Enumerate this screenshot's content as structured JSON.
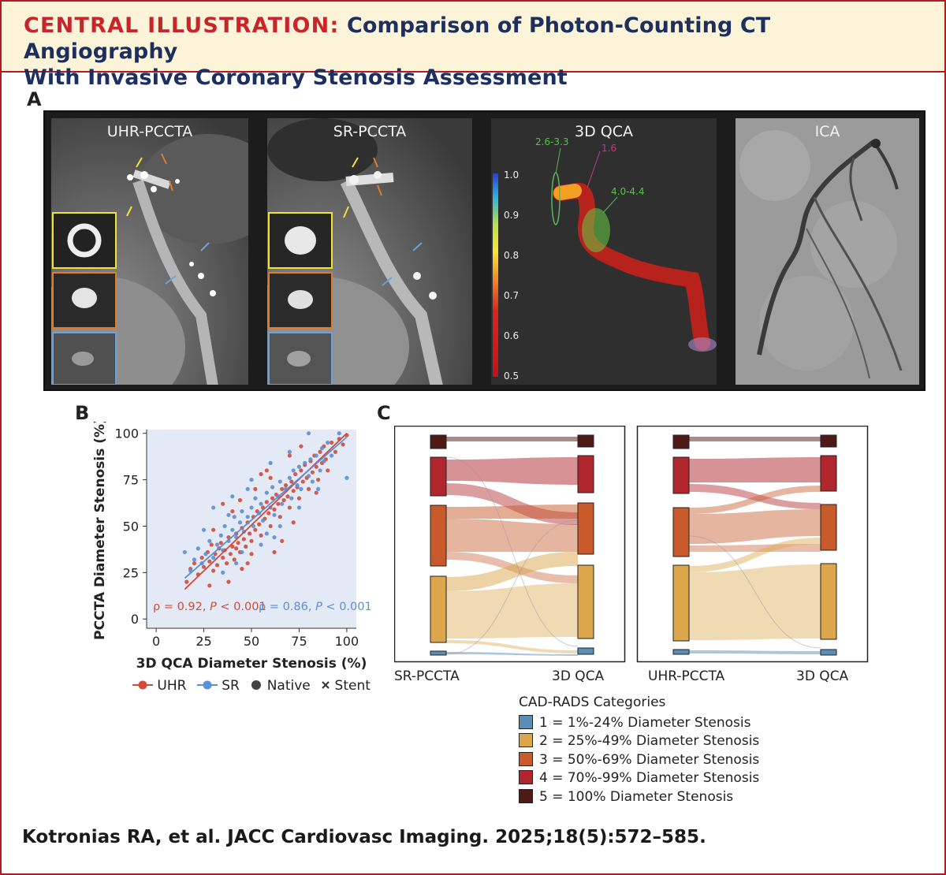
{
  "header": {
    "lead": "CENTRAL ILLUSTRATION:",
    "title_line1": "Comparison of Photon-Counting CT Angiography",
    "title_line2": "With Invasive Coronary Stenosis Assessment"
  },
  "panel_a": {
    "label": "A",
    "images": [
      {
        "label": "UHR-PCCTA"
      },
      {
        "label": "SR-PCCTA"
      },
      {
        "label": "3D QCA"
      },
      {
        "label": "ICA"
      }
    ],
    "qca_annotations": [
      "2.6-3.3",
      "1.6",
      "4.0-4.4"
    ],
    "colorbar_ticks": [
      "1.0",
      "0.9",
      "0.8",
      "0.7",
      "0.6",
      "0.5"
    ]
  },
  "panel_b": {
    "label": "B",
    "xlabel": "3D QCA Diameter Stenosis (%)",
    "ylabel": "PCCTA Diameter Stenosis (%)",
    "stat_uhr": "ρ = 0.92, P < 0.001",
    "stat_uhr_parts": {
      "a": "ρ = 0.92, ",
      "p": "P",
      "b": " < 0.001"
    },
    "stat_sr_parts": {
      "a": "ρ = 0.86, ",
      "p": "P",
      "b": " < 0.001"
    },
    "legend": {
      "uhr": "UHR",
      "sr": "SR",
      "native": "Native",
      "stent": "Stent"
    },
    "colors": {
      "uhr": "#cf4b3b",
      "sr": "#5b8fd6",
      "native": "#444444",
      "background": "#e4e9f6"
    }
  },
  "panel_c": {
    "label": "C",
    "left_axis_labels": [
      "SR-PCCTA",
      "3D QCA"
    ],
    "right_axis_labels": [
      "UHR-PCCTA",
      "3D QCA"
    ],
    "legend_title": "CAD-RADS Categories",
    "categories": [
      {
        "label": "1 = 1%-24% Diameter Stenosis",
        "color": "#5b8db8"
      },
      {
        "label": "2 = 25%-49% Diameter Stenosis",
        "color": "#dba64c"
      },
      {
        "label": "3 = 50%-69% Diameter Stenosis",
        "color": "#c85a2c"
      },
      {
        "label": "4 = 70%-99% Diameter Stenosis",
        "color": "#b0262c"
      },
      {
        "label": "5 = 100% Diameter Stenosis",
        "color": "#4f1a16"
      }
    ]
  },
  "chart_data": {
    "type": "scatter",
    "xlabel": "3D QCA Diameter Stenosis (%)",
    "ylabel": "PCCTA Diameter Stenosis (%)",
    "xlim": [
      -5,
      105
    ],
    "ylim": [
      -5,
      102
    ],
    "xticks": [
      0,
      25,
      50,
      75,
      100
    ],
    "yticks": [
      0,
      25,
      50,
      75,
      100
    ],
    "grid": false,
    "legend_position": "bottom",
    "series": [
      {
        "name": "UHR",
        "color": "#cf4b3b",
        "fit": [
          [
            15,
            16
          ],
          [
            100,
            100
          ]
        ],
        "points": [
          [
            16,
            20
          ],
          [
            18,
            27
          ],
          [
            20,
            30
          ],
          [
            22,
            24
          ],
          [
            24,
            33
          ],
          [
            25,
            28
          ],
          [
            27,
            36
          ],
          [
            28,
            31
          ],
          [
            29,
            40
          ],
          [
            30,
            26
          ],
          [
            31,
            35
          ],
          [
            32,
            29
          ],
          [
            33,
            38
          ],
          [
            34,
            41
          ],
          [
            35,
            33
          ],
          [
            36,
            37
          ],
          [
            37,
            30
          ],
          [
            38,
            44
          ],
          [
            39,
            35
          ],
          [
            40,
            39
          ],
          [
            41,
            32
          ],
          [
            42,
            46
          ],
          [
            42,
            38
          ],
          [
            43,
            41
          ],
          [
            44,
            36
          ],
          [
            45,
            49
          ],
          [
            46,
            43
          ],
          [
            47,
            39
          ],
          [
            48,
            52
          ],
          [
            49,
            46
          ],
          [
            50,
            42
          ],
          [
            51,
            55
          ],
          [
            52,
            48
          ],
          [
            53,
            58
          ],
          [
            54,
            51
          ],
          [
            55,
            45
          ],
          [
            56,
            60
          ],
          [
            57,
            54
          ],
          [
            58,
            63
          ],
          [
            59,
            57
          ],
          [
            60,
            50
          ],
          [
            61,
            65
          ],
          [
            62,
            59
          ],
          [
            63,
            67
          ],
          [
            64,
            62
          ],
          [
            65,
            55
          ],
          [
            66,
            70
          ],
          [
            67,
            64
          ],
          [
            68,
            72
          ],
          [
            69,
            66
          ],
          [
            70,
            60
          ],
          [
            71,
            74
          ],
          [
            72,
            69
          ],
          [
            73,
            78
          ],
          [
            74,
            71
          ],
          [
            75,
            65
          ],
          [
            76,
            80
          ],
          [
            77,
            74
          ],
          [
            78,
            83
          ],
          [
            79,
            76
          ],
          [
            80,
            70
          ],
          [
            81,
            85
          ],
          [
            82,
            79
          ],
          [
            83,
            88
          ],
          [
            84,
            82
          ],
          [
            85,
            75
          ],
          [
            86,
            90
          ],
          [
            87,
            84
          ],
          [
            88,
            93
          ],
          [
            89,
            86
          ],
          [
            90,
            80
          ],
          [
            92,
            95
          ],
          [
            94,
            90
          ],
          [
            96,
            97
          ],
          [
            98,
            94
          ],
          [
            100,
            99
          ],
          [
            35,
            62
          ],
          [
            45,
            27
          ],
          [
            55,
            78
          ],
          [
            62,
            36
          ],
          [
            70,
            88
          ],
          [
            48,
            30
          ],
          [
            58,
            80
          ],
          [
            40,
            58
          ],
          [
            66,
            42
          ],
          [
            76,
            93
          ],
          [
            30,
            48
          ],
          [
            52,
            70
          ],
          [
            44,
            64
          ],
          [
            84,
            68
          ],
          [
            28,
            18
          ],
          [
            38,
            20
          ],
          [
            60,
            76
          ],
          [
            72,
            52
          ],
          [
            50,
            35
          ]
        ]
      },
      {
        "name": "SR",
        "color": "#5b8fd6",
        "fit": [
          [
            15,
            22
          ],
          [
            100,
            98
          ]
        ],
        "points": [
          [
            15,
            36
          ],
          [
            18,
            26
          ],
          [
            20,
            32
          ],
          [
            22,
            38
          ],
          [
            24,
            30
          ],
          [
            26,
            35
          ],
          [
            28,
            42
          ],
          [
            30,
            33
          ],
          [
            32,
            40
          ],
          [
            34,
            45
          ],
          [
            35,
            37
          ],
          [
            36,
            50
          ],
          [
            38,
            42
          ],
          [
            40,
            48
          ],
          [
            41,
            55
          ],
          [
            42,
            44
          ],
          [
            44,
            52
          ],
          [
            45,
            58
          ],
          [
            46,
            47
          ],
          [
            48,
            55
          ],
          [
            50,
            60
          ],
          [
            51,
            50
          ],
          [
            52,
            65
          ],
          [
            54,
            57
          ],
          [
            55,
            62
          ],
          [
            56,
            53
          ],
          [
            58,
            68
          ],
          [
            60,
            60
          ],
          [
            61,
            71
          ],
          [
            62,
            56
          ],
          [
            64,
            66
          ],
          [
            65,
            74
          ],
          [
            66,
            62
          ],
          [
            68,
            70
          ],
          [
            70,
            76
          ],
          [
            71,
            65
          ],
          [
            72,
            80
          ],
          [
            74,
            72
          ],
          [
            75,
            82
          ],
          [
            76,
            70
          ],
          [
            78,
            84
          ],
          [
            80,
            77
          ],
          [
            81,
            86
          ],
          [
            82,
            74
          ],
          [
            84,
            88
          ],
          [
            86,
            80
          ],
          [
            87,
            92
          ],
          [
            88,
            85
          ],
          [
            90,
            95
          ],
          [
            92,
            88
          ],
          [
            96,
            100
          ],
          [
            100,
            76
          ],
          [
            30,
            60
          ],
          [
            40,
            66
          ],
          [
            50,
            75
          ],
          [
            35,
            25
          ],
          [
            45,
            36
          ],
          [
            55,
            40
          ],
          [
            65,
            50
          ],
          [
            75,
            60
          ],
          [
            85,
            70
          ],
          [
            25,
            48
          ],
          [
            60,
            84
          ],
          [
            70,
            90
          ],
          [
            42,
            30
          ],
          [
            58,
            46
          ],
          [
            80,
            100
          ],
          [
            48,
            70
          ],
          [
            38,
            56
          ],
          [
            62,
            44
          ]
        ]
      }
    ],
    "annotations": [
      "ρ = 0.92, P < 0.001",
      "ρ = 0.86, P < 0.001"
    ]
  }
}
